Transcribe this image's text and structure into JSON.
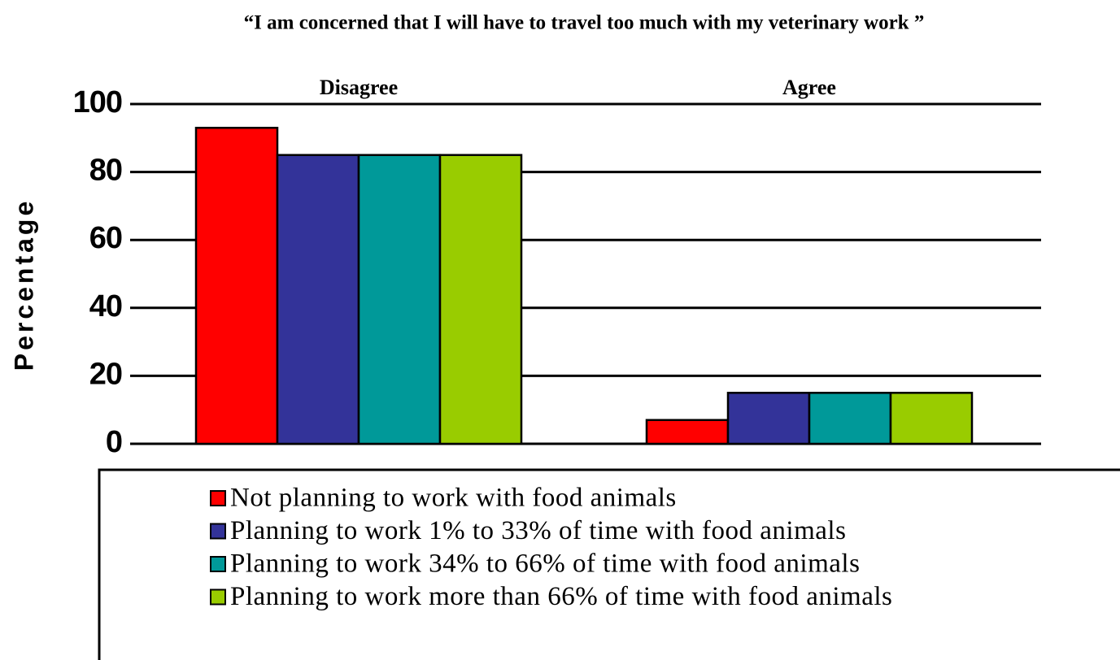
{
  "chart_data": {
    "type": "bar",
    "title": "“I am concerned that I will have to travel too much with my veterinary work ”",
    "y_label": "Percentage",
    "categories": [
      "Disagree",
      "Agree"
    ],
    "series": [
      {
        "name": "Not planning to work with food animals",
        "color": "#ff0000",
        "values": [
          93,
          7
        ]
      },
      {
        "name": "Planning to work 1% to 33% of time with food animals",
        "color": "#333399",
        "values": [
          85,
          15
        ]
      },
      {
        "name": "Planning to work 34% to 66% of time with food animals",
        "color": "#009999",
        "values": [
          85,
          15
        ]
      },
      {
        "name": "Planning to work more than 66% of time with food animals",
        "color": "#99cc00",
        "values": [
          85,
          15
        ]
      }
    ],
    "ylim": [
      0,
      100
    ],
    "yticks": [
      0,
      20,
      40,
      60,
      80,
      100
    ],
    "grid": true,
    "legend": "bottom"
  }
}
